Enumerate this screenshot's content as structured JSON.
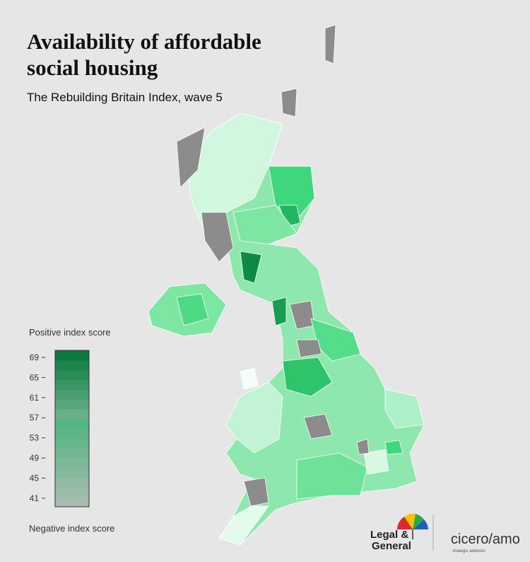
{
  "header": {
    "title": "Availability of affordable social housing",
    "subtitle": "The Rebuilding Britain Index, wave 5"
  },
  "legend": {
    "top_label": "Positive index score",
    "bottom_label": "Negative index score",
    "range": [
      39.3,
      70.4
    ],
    "ticks": [
      69,
      65,
      61,
      57,
      53,
      49,
      45,
      41
    ],
    "colors": [
      "#f3fff7",
      "#0c7a3f"
    ]
  },
  "logos": {
    "left_line1": "Legal &",
    "left_line2": "General",
    "right": "cicero/amo",
    "right_tagline": "strategic advisors"
  }
}
